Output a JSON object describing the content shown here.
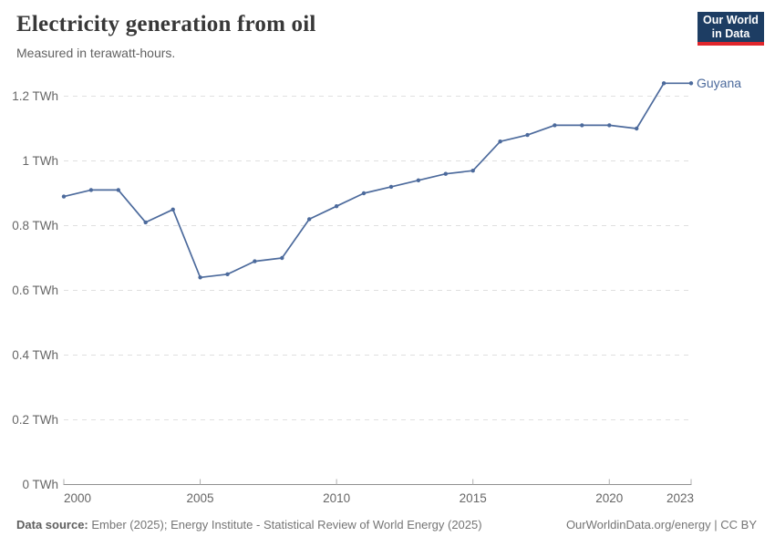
{
  "header": {
    "title": "Electricity generation from oil",
    "subtitle": "Measured in terawatt-hours.",
    "logo": {
      "line1": "Our World",
      "line2": "in Data"
    }
  },
  "chart_data": {
    "type": "line",
    "title": "Electricity generation from oil",
    "unit": "TWh",
    "xlim": [
      2000,
      2023
    ],
    "ylim": [
      0,
      1.2
    ],
    "grid": "horizontal-dashed",
    "legend_position": "line-end-label",
    "x_ticks": [
      {
        "year": 2000,
        "label": "2000"
      },
      {
        "year": 2005,
        "label": "2005"
      },
      {
        "year": 2010,
        "label": "2010"
      },
      {
        "year": 2015,
        "label": "2015"
      },
      {
        "year": 2020,
        "label": "2020"
      },
      {
        "year": 2023,
        "label": "2023"
      }
    ],
    "y_ticks": [
      {
        "value": 0,
        "label": "0 TWh"
      },
      {
        "value": 0.2,
        "label": "0.2 TWh"
      },
      {
        "value": 0.4,
        "label": "0.4 TWh"
      },
      {
        "value": 0.6,
        "label": "0.6 TWh"
      },
      {
        "value": 0.8,
        "label": "0.8 TWh"
      },
      {
        "value": 1,
        "label": "1 TWh"
      },
      {
        "value": 1.2,
        "label": "1.2 TWh"
      }
    ],
    "series": [
      {
        "name": "Guyana",
        "color": "#4c6a9c",
        "x": [
          2000,
          2001,
          2002,
          2003,
          2004,
          2005,
          2006,
          2007,
          2008,
          2009,
          2010,
          2011,
          2012,
          2013,
          2014,
          2015,
          2016,
          2017,
          2018,
          2019,
          2020,
          2021,
          2022,
          2023
        ],
        "values": [
          0.89,
          0.91,
          0.91,
          0.81,
          0.85,
          0.64,
          0.65,
          0.69,
          0.7,
          0.82,
          0.86,
          0.9,
          0.92,
          0.94,
          0.96,
          0.97,
          1.06,
          1.08,
          1.11,
          1.11,
          1.11,
          1.1,
          1.24,
          1.24
        ]
      }
    ]
  },
  "footer": {
    "source_label": "Data source:",
    "source_text": " Ember (2025); Energy Institute - Statistical Review of World Energy (2025)",
    "right_text": "OurWorldinData.org/energy | CC BY"
  },
  "colors": {
    "line": "#4c6a9c",
    "grid": "#e0e0e0",
    "axis": "#8f8f8f",
    "tick": "#b0b0b0",
    "tick_label": "#666666",
    "logo_bg": "#1d3d63",
    "logo_accent": "#e0262c"
  }
}
